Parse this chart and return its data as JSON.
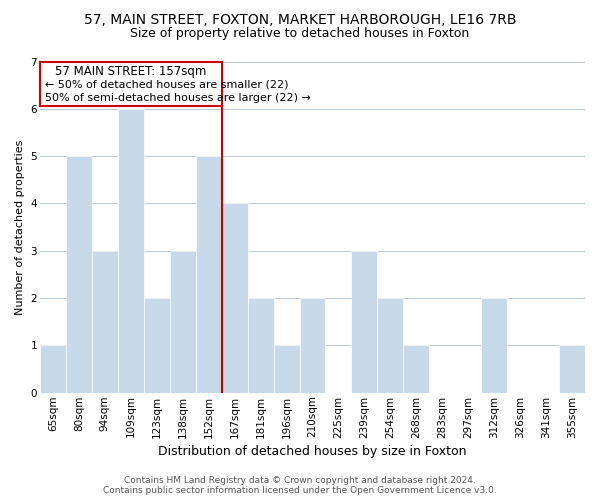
{
  "title_line1": "57, MAIN STREET, FOXTON, MARKET HARBOROUGH, LE16 7RB",
  "title_line2": "Size of property relative to detached houses in Foxton",
  "xlabel": "Distribution of detached houses by size in Foxton",
  "ylabel": "Number of detached properties",
  "bar_color": "#c8d9ea",
  "background_color": "#ffffff",
  "grid_color": "#b8c8d8",
  "categories": [
    "65sqm",
    "80sqm",
    "94sqm",
    "109sqm",
    "123sqm",
    "138sqm",
    "152sqm",
    "167sqm",
    "181sqm",
    "196sqm",
    "210sqm",
    "225sqm",
    "239sqm",
    "254sqm",
    "268sqm",
    "283sqm",
    "297sqm",
    "312sqm",
    "326sqm",
    "341sqm",
    "355sqm"
  ],
  "values": [
    1,
    5,
    3,
    6,
    2,
    3,
    5,
    4,
    2,
    1,
    2,
    0,
    3,
    2,
    1,
    0,
    0,
    2,
    0,
    0,
    1
  ],
  "ylim": [
    0,
    7
  ],
  "yticks": [
    0,
    1,
    2,
    3,
    4,
    5,
    6,
    7
  ],
  "vline_color": "#cc0000",
  "annotation_title": "57 MAIN STREET: 157sqm",
  "annotation_line1": "← 50% of detached houses are smaller (22)",
  "annotation_line2": "50% of semi-detached houses are larger (22) →",
  "annotation_box_color": "#ffffff",
  "annotation_box_edge": "#cc0000",
  "footer_line1": "Contains HM Land Registry data © Crown copyright and database right 2024.",
  "footer_line2": "Contains public sector information licensed under the Open Government Licence v3.0.",
  "title_fontsize": 10,
  "subtitle_fontsize": 9,
  "ylabel_fontsize": 8,
  "xlabel_fontsize": 9,
  "tick_fontsize": 7.5,
  "footer_fontsize": 6.5
}
